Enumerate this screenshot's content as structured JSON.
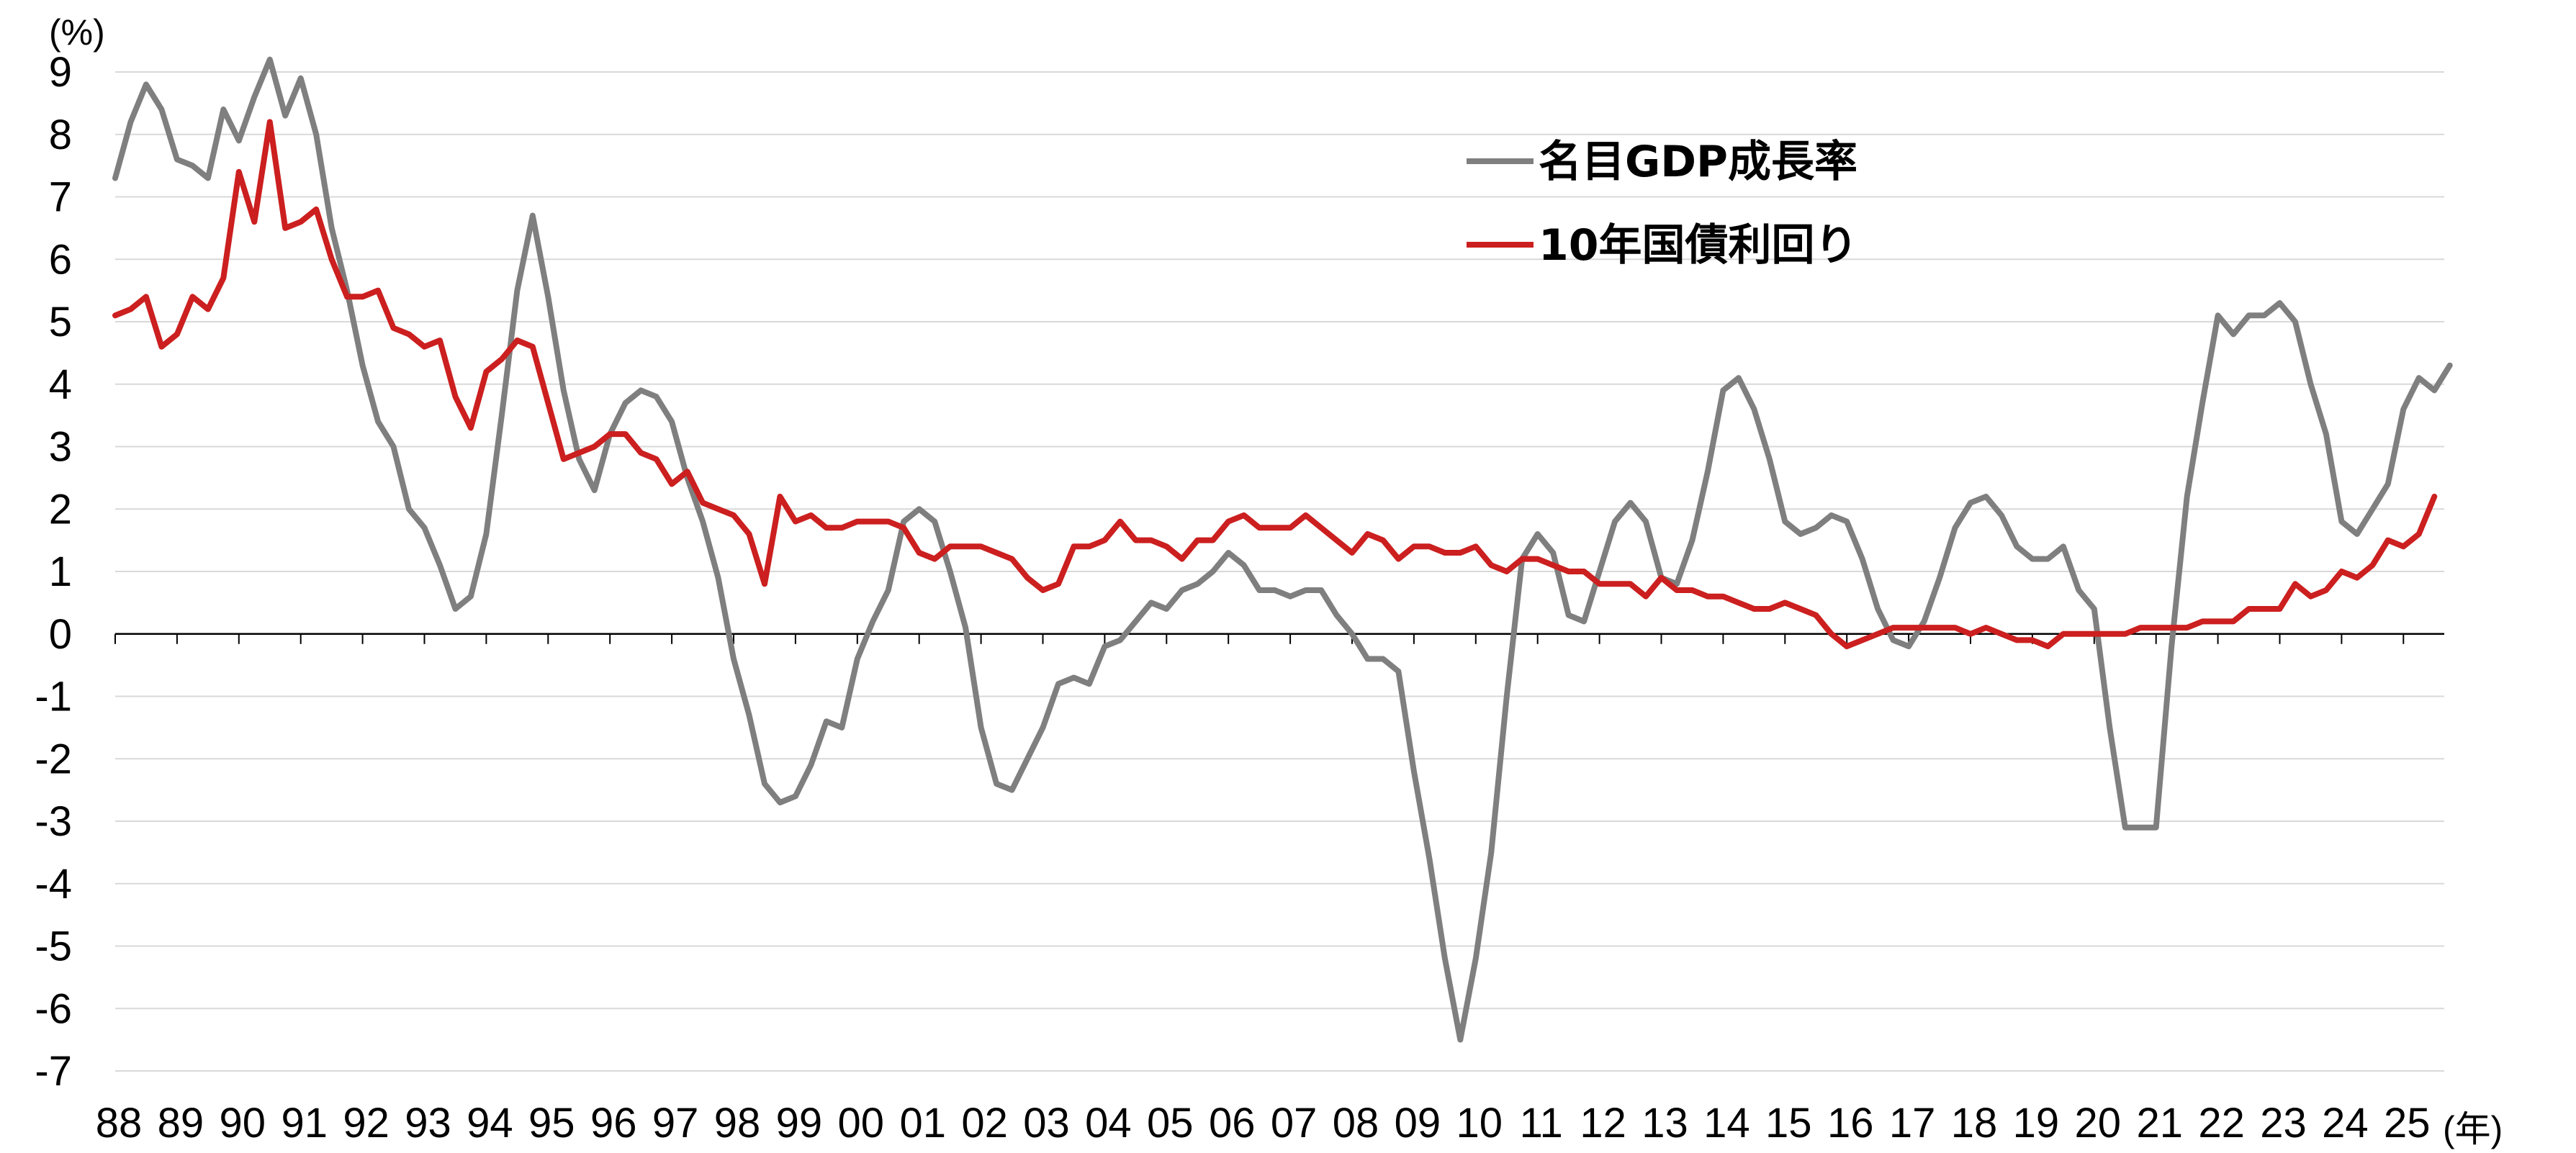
{
  "chart_data": {
    "type": "line",
    "y_unit": "(%)",
    "x_unit": "(年)",
    "ylim": [
      -7,
      9
    ],
    "yticks": [
      9,
      8,
      7,
      6,
      5,
      4,
      3,
      2,
      1,
      0,
      -1,
      -2,
      -3,
      -4,
      -5,
      -6,
      -7
    ],
    "ytick_labels": [
      "9",
      "8",
      "7",
      "6",
      "5",
      "4",
      "3",
      "2",
      "1",
      "0",
      "-1",
      "-2",
      "-3",
      "-4",
      "-5",
      "-6",
      "-7"
    ],
    "x_tick_labels": [
      "88",
      "89",
      "90",
      "91",
      "92",
      "93",
      "94",
      "95",
      "96",
      "97",
      "98",
      "99",
      "00",
      "01",
      "02",
      "03",
      "04",
      "05",
      "06",
      "07",
      "08",
      "09",
      "10",
      "11",
      "12",
      "13",
      "14",
      "15",
      "16",
      "17",
      "18",
      "19",
      "20",
      "21",
      "22",
      "23",
      "24",
      "25"
    ],
    "x_start_year": 1988,
    "x_frequency": "quarterly",
    "grid": "horizontal",
    "legend_position": "upper-center-right",
    "series": [
      {
        "name": "名目GDP成長率",
        "color": "#7f7f7f",
        "values": [
          7.3,
          8.2,
          8.8,
          8.4,
          7.6,
          7.5,
          7.3,
          8.4,
          7.9,
          8.6,
          9.2,
          8.3,
          8.9,
          8.0,
          6.5,
          5.5,
          4.3,
          3.4,
          3.0,
          2.0,
          1.7,
          1.1,
          0.4,
          0.6,
          1.6,
          3.5,
          5.5,
          6.7,
          5.4,
          3.9,
          2.8,
          2.3,
          3.2,
          3.7,
          3.9,
          3.8,
          3.4,
          2.5,
          1.8,
          0.9,
          -0.4,
          -1.3,
          -2.4,
          -2.7,
          -2.6,
          -2.1,
          -1.4,
          -1.5,
          -0.4,
          0.2,
          0.7,
          1.8,
          2.0,
          1.8,
          1.0,
          0.1,
          -1.5,
          -2.4,
          -2.5,
          -2.0,
          -1.5,
          -0.8,
          -0.7,
          -0.8,
          -0.2,
          -0.1,
          0.2,
          0.5,
          0.4,
          0.7,
          0.8,
          1.0,
          1.3,
          1.1,
          0.7,
          0.7,
          0.6,
          0.7,
          0.7,
          0.3,
          0.0,
          -0.4,
          -0.4,
          -0.6,
          -2.2,
          -3.6,
          -5.2,
          -6.5,
          -5.2,
          -3.5,
          -1.0,
          1.2,
          1.6,
          1.3,
          0.3,
          0.2,
          1.0,
          1.8,
          2.1,
          1.8,
          0.9,
          0.8,
          1.5,
          2.6,
          3.9,
          4.1,
          3.6,
          2.8,
          1.8,
          1.6,
          1.7,
          1.9,
          1.8,
          1.2,
          0.4,
          -0.1,
          -0.2,
          0.2,
          0.9,
          1.7,
          2.1,
          2.2,
          1.9,
          1.4,
          1.2,
          1.2,
          1.4,
          0.7,
          0.4,
          -1.5,
          -3.1,
          -3.1,
          -3.1,
          -0.2,
          2.2,
          3.7,
          5.1,
          4.8,
          5.1,
          5.1,
          5.3,
          5.0,
          4.0,
          3.2,
          1.8,
          1.6,
          2.0,
          2.4,
          3.6,
          4.1,
          3.9,
          4.3
        ]
      },
      {
        "name": "10年国債利回り",
        "color": "#cc1f1f",
        "values": [
          5.1,
          5.2,
          5.4,
          4.6,
          4.8,
          5.4,
          5.2,
          5.7,
          7.4,
          6.6,
          8.2,
          6.5,
          6.6,
          6.8,
          6.0,
          5.4,
          5.4,
          5.5,
          4.9,
          4.8,
          4.6,
          4.7,
          3.8,
          3.3,
          4.2,
          4.4,
          4.7,
          4.6,
          3.7,
          2.8,
          2.9,
          3.0,
          3.2,
          3.2,
          2.9,
          2.8,
          2.4,
          2.6,
          2.1,
          2.0,
          1.9,
          1.6,
          0.8,
          2.2,
          1.8,
          1.9,
          1.7,
          1.7,
          1.8,
          1.8,
          1.8,
          1.7,
          1.3,
          1.2,
          1.4,
          1.4,
          1.4,
          1.3,
          1.2,
          0.9,
          0.7,
          0.8,
          1.4,
          1.4,
          1.5,
          1.8,
          1.5,
          1.5,
          1.4,
          1.2,
          1.5,
          1.5,
          1.8,
          1.9,
          1.7,
          1.7,
          1.7,
          1.9,
          1.7,
          1.5,
          1.3,
          1.6,
          1.5,
          1.2,
          1.4,
          1.4,
          1.3,
          1.3,
          1.4,
          1.1,
          1.0,
          1.2,
          1.2,
          1.1,
          1.0,
          1.0,
          0.8,
          0.8,
          0.8,
          0.6,
          0.9,
          0.7,
          0.7,
          0.6,
          0.6,
          0.5,
          0.4,
          0.4,
          0.5,
          0.4,
          0.3,
          0.0,
          -0.2,
          -0.1,
          0.0,
          0.1,
          0.1,
          0.1,
          0.1,
          0.1,
          0.0,
          0.1,
          0.0,
          -0.1,
          -0.1,
          -0.2,
          0.0,
          0.0,
          0.0,
          0.0,
          0.0,
          0.1,
          0.1,
          0.1,
          0.1,
          0.2,
          0.2,
          0.2,
          0.4,
          0.4,
          0.4,
          0.8,
          0.6,
          0.7,
          1.0,
          0.9,
          1.1,
          1.5,
          1.4,
          1.6,
          2.2
        ]
      }
    ]
  }
}
